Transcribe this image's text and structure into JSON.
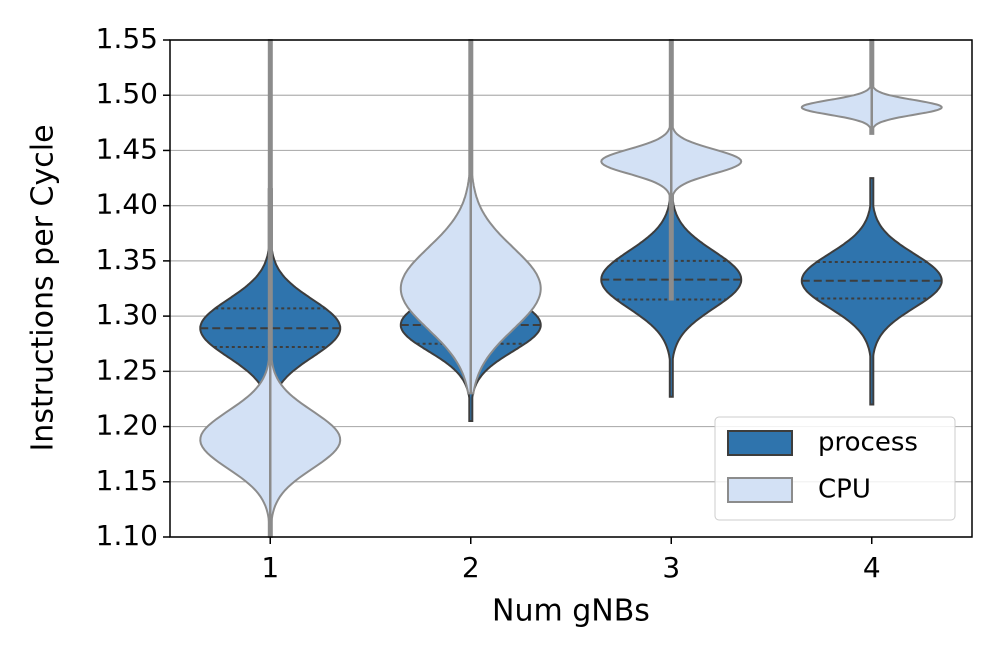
{
  "chart_data": {
    "type": "violin",
    "x_label": "Num gNBs",
    "y_label": "Instructions per Cycle",
    "categories": [
      "1",
      "2",
      "3",
      "4"
    ],
    "ylim": [
      1.1,
      1.55
    ],
    "yticks": [
      {
        "value": 1.1,
        "label": "1.10"
      },
      {
        "value": 1.15,
        "label": "1.15"
      },
      {
        "value": 1.2,
        "label": "1.20"
      },
      {
        "value": 1.25,
        "label": "1.25"
      },
      {
        "value": 1.3,
        "label": "1.30"
      },
      {
        "value": 1.35,
        "label": "1.35"
      },
      {
        "value": 1.4,
        "label": "1.40"
      },
      {
        "value": 1.45,
        "label": "1.45"
      },
      {
        "value": 1.5,
        "label": "1.50"
      },
      {
        "value": 1.55,
        "label": "1.55"
      }
    ],
    "grid": true,
    "legend": "lower right",
    "series": [
      {
        "name": "process",
        "color": "#2f74ad",
        "edge": "#3d3d3d",
        "quartile_lines": true,
        "min": [
          1.225,
          1.205,
          1.227,
          1.22
        ],
        "q1": [
          1.272,
          1.275,
          1.315,
          1.316
        ],
        "median": [
          1.289,
          1.292,
          1.333,
          1.332
        ],
        "q3": [
          1.307,
          1.307,
          1.35,
          1.349
        ],
        "max": [
          1.415,
          1.345,
          1.41,
          1.425
        ]
      },
      {
        "name": "CPU",
        "color": "#d3e1f5",
        "edge": "#8c8c8c",
        "quartile_lines": false,
        "min": [
          1.1,
          1.23,
          1.315,
          1.465
        ],
        "q1": [
          1.17,
          1.29,
          1.432,
          1.485
        ],
        "median": [
          1.188,
          1.325,
          1.44,
          1.489
        ],
        "q3": [
          1.205,
          1.34,
          1.447,
          1.494
        ],
        "max": [
          1.55,
          1.55,
          1.55,
          1.55
        ]
      }
    ]
  }
}
